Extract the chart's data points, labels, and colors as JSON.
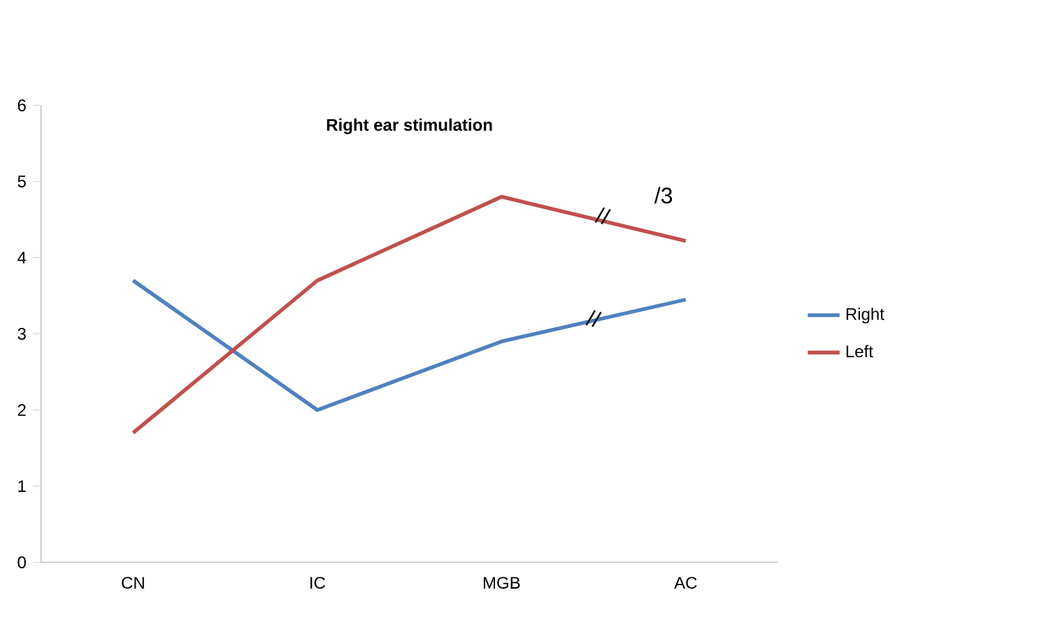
{
  "chart_data": {
    "type": "line",
    "title": "Right ear stimulation",
    "categories": [
      "CN",
      "IC",
      "MGB",
      "AC"
    ],
    "series": [
      {
        "name": "Right",
        "color": "#4f81bd",
        "values": [
          3.7,
          2.0,
          2.9,
          3.45
        ]
      },
      {
        "name": "Left",
        "color": "#c0504d",
        "values": [
          1.7,
          3.7,
          4.8,
          4.22
        ]
      }
    ],
    "ylim": [
      0,
      6
    ],
    "yticks": [
      0,
      1,
      2,
      3,
      4,
      5,
      6
    ],
    "annotations": [
      "/3",
      "//",
      "//"
    ],
    "legend": "right",
    "grid": false,
    "marker": "none",
    "line_style": "solid"
  }
}
